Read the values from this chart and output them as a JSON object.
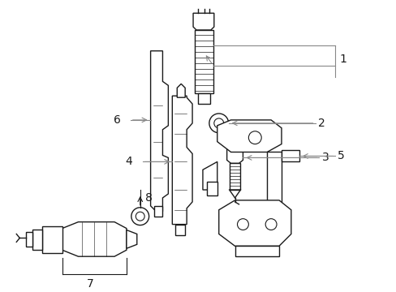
{
  "bg_color": "#ffffff",
  "line_color": "#1a1a1a",
  "gray_color": "#888888",
  "fig_width": 4.89,
  "fig_height": 3.6,
  "dpi": 100,
  "label_fontsize": 9
}
